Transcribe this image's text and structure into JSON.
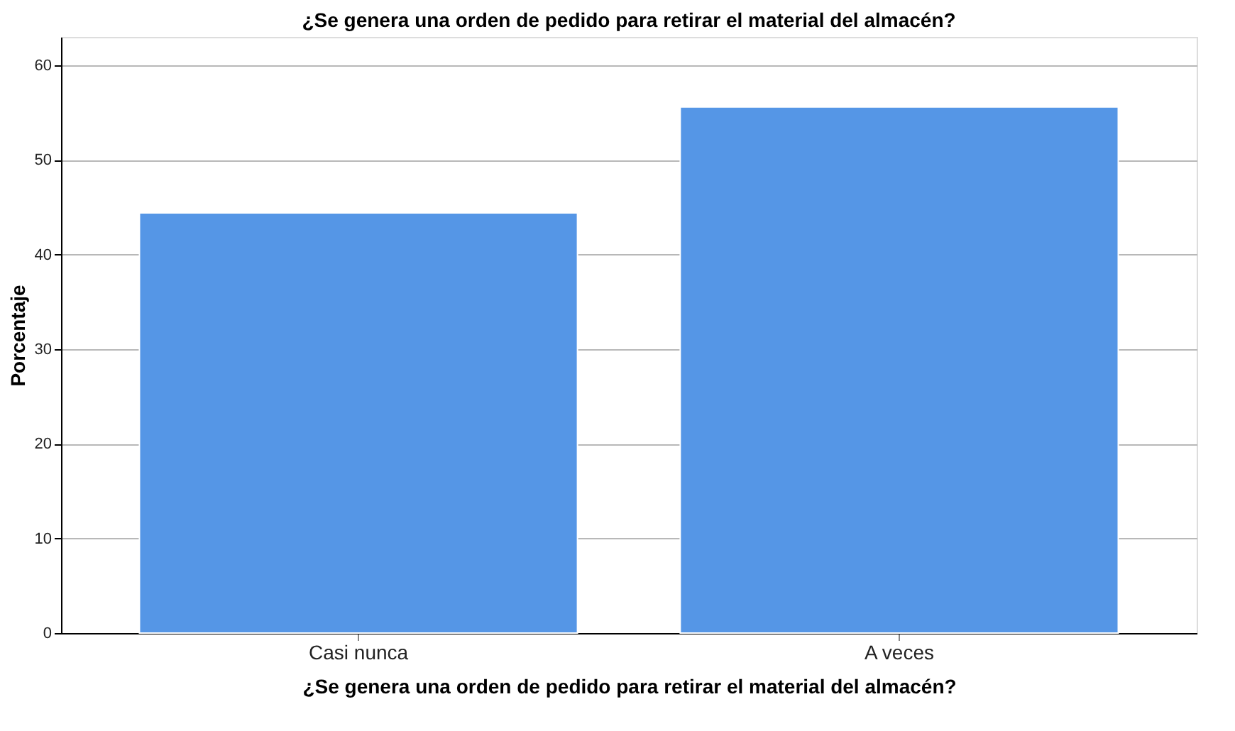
{
  "chart_data": {
    "type": "bar",
    "title": "¿Se genera una orden de pedido para retirar el material del almacén?",
    "xlabel": "¿Se genera una orden de pedido para retirar el material del almacén?",
    "ylabel": "Porcentaje",
    "categories": [
      "Casi nunca",
      "A veces"
    ],
    "values": [
      44.4,
      55.6
    ],
    "color": "#5596e6",
    "ylim": [
      0,
      63
    ],
    "yticks": [
      0,
      10,
      20,
      30,
      40,
      50,
      60
    ],
    "grid": "y"
  }
}
